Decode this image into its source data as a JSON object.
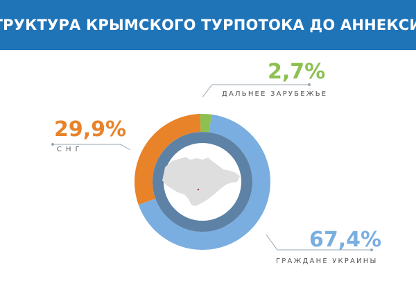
{
  "header": {
    "title": "СТРУКТУРА КРЫМСКОГО ТУРПОТОКА ДО АННЕКСИИ"
  },
  "colors": {
    "header_bg": "#1f74b8",
    "ukraine": "#7aaee0",
    "cis": "#e8832a",
    "far_abroad": "#8cc152",
    "inner_ring": "#5d82a6",
    "map": "#dedede",
    "caption": "#555555",
    "leader": "#9aa7b2"
  },
  "chart_data": {
    "type": "pie",
    "donut": true,
    "title": "СТРУКТУРА КРЫМСКОГО ТУРПОТОКА ДО АННЕКСИИ",
    "slices": [
      {
        "label": "ДАЛЬНЕЕ ЗАРУБЕЖЬЕ",
        "value": 2.7,
        "display": "2,7%",
        "color": "#8cc152"
      },
      {
        "label": "ГРАЖДАНЕ УКРАИНЫ",
        "value": 67.4,
        "display": "67,4%",
        "color": "#7aaee0"
      },
      {
        "label": "СНГ",
        "value": 29.9,
        "display": "29,9%",
        "color": "#e8832a"
      }
    ]
  }
}
